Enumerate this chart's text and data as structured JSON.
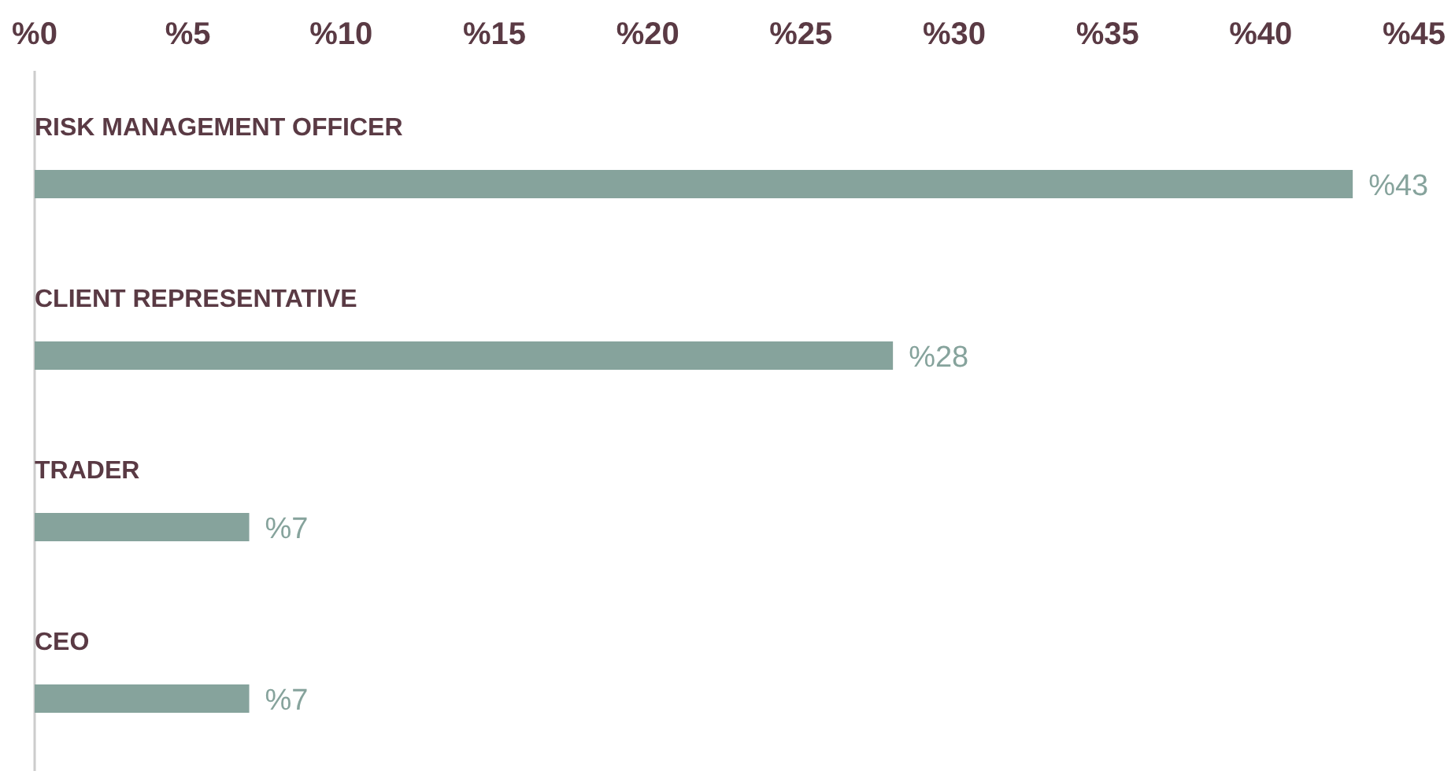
{
  "chart_data": {
    "type": "bar",
    "orientation": "horizontal",
    "categories": [
      "RISK MANAGEMENT OFFICER",
      "CLIENT REPRESENTATIVE",
      "TRADER",
      "CEO"
    ],
    "values": [
      43,
      28,
      7,
      7
    ],
    "value_labels": [
      "%43",
      "%28",
      "%7",
      "%7"
    ],
    "color": "#86a39c",
    "xlim": [
      0,
      45
    ],
    "xticks": [
      {
        "value": 0,
        "label": "%0"
      },
      {
        "value": 5,
        "label": "%5"
      },
      {
        "value": 10,
        "label": "%10"
      },
      {
        "value": 15,
        "label": "%15"
      },
      {
        "value": 20,
        "label": "%20"
      },
      {
        "value": 25,
        "label": "%25"
      },
      {
        "value": 30,
        "label": "%30"
      },
      {
        "value": 35,
        "label": "%35"
      },
      {
        "value": 40,
        "label": "%40"
      },
      {
        "value": 45,
        "label": "%45"
      }
    ],
    "grid": false
  }
}
